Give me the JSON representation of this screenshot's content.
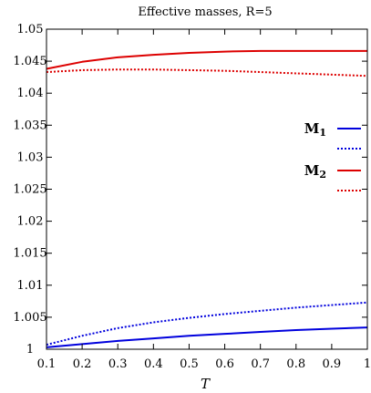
{
  "chart_data": {
    "type": "line",
    "title": "Effective masses, R=5",
    "xlabel": "T",
    "ylabel": "",
    "xlim": [
      0.1,
      1
    ],
    "ylim": [
      1,
      1.05
    ],
    "xticks": [
      "0.1",
      "0.2",
      "0.3",
      "0.4",
      "0.5",
      "0.6",
      "0.7",
      "0.8",
      "0.9",
      "1"
    ],
    "yticks": [
      "1",
      "1.005",
      "1.01",
      "1.015",
      "1.02",
      "1.025",
      "1.03",
      "1.035",
      "1.04",
      "1.045",
      "1.05"
    ],
    "grid": false,
    "legend_position": "top-right",
    "legend": [
      {
        "base": "M",
        "sub": "1"
      },
      {
        "base": "M",
        "sub": "2"
      }
    ],
    "series": [
      {
        "group": 0,
        "color": "#0000dd",
        "style": "solid",
        "x": [
          0.1,
          0.2,
          0.3,
          0.4,
          0.5,
          0.6,
          0.7,
          0.8,
          0.9,
          1.0
        ],
        "y": [
          1.0003,
          1.0008,
          1.0013,
          1.0017,
          1.0021,
          1.0024,
          1.0027,
          1.003,
          1.0032,
          1.0034
        ]
      },
      {
        "group": 0,
        "color": "#0000dd",
        "style": "dotted",
        "x": [
          0.1,
          0.2,
          0.3,
          0.4,
          0.5,
          0.6,
          0.7,
          0.8,
          0.9,
          1.0
        ],
        "y": [
          1.0007,
          1.0021,
          1.0033,
          1.0042,
          1.0049,
          1.0055,
          1.006,
          1.0065,
          1.0069,
          1.0073
        ]
      },
      {
        "group": 1,
        "color": "#dd0000",
        "style": "solid",
        "x": [
          0.1,
          0.2,
          0.3,
          0.4,
          0.5,
          0.6,
          0.7,
          0.8,
          0.9,
          1.0
        ],
        "y": [
          1.0438,
          1.0449,
          1.0456,
          1.046,
          1.0463,
          1.0465,
          1.0466,
          1.0466,
          1.0466,
          1.0466
        ]
      },
      {
        "group": 1,
        "color": "#dd0000",
        "style": "dotted",
        "x": [
          0.1,
          0.2,
          0.3,
          0.4,
          0.5,
          0.6,
          0.7,
          0.8,
          0.9,
          1.0
        ],
        "y": [
          1.0433,
          1.0436,
          1.0437,
          1.0437,
          1.0436,
          1.0435,
          1.0433,
          1.0431,
          1.0429,
          1.0427
        ]
      }
    ]
  }
}
